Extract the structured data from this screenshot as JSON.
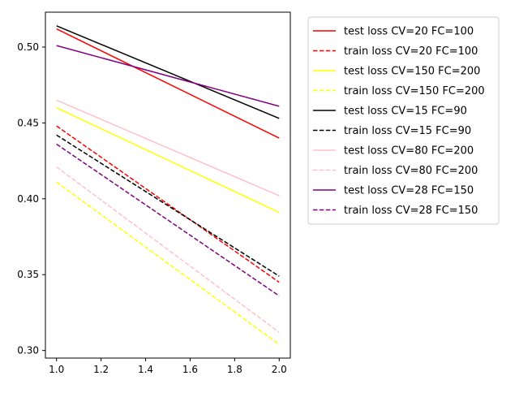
{
  "chart_data": {
    "type": "line",
    "title": "",
    "xlabel": "",
    "ylabel": "",
    "xlim": [
      0.95,
      2.05
    ],
    "ylim": [
      0.295,
      0.523
    ],
    "xticks": [
      1.0,
      1.2,
      1.4,
      1.6,
      1.8,
      2.0
    ],
    "xtick_labels": [
      "1.0",
      "1.2",
      "1.4",
      "1.6",
      "1.8",
      "2.0"
    ],
    "yticks": [
      0.3,
      0.35,
      0.4,
      0.45,
      0.5
    ],
    "ytick_labels": [
      "0.30",
      "0.35",
      "0.40",
      "0.45",
      "0.50"
    ],
    "grid": false,
    "legend_placement": "outside-upper-right",
    "x": [
      1.0,
      2.0
    ],
    "series": [
      {
        "name": "test loss CV=20 FC=100",
        "values": [
          0.512,
          0.44
        ],
        "color": "#ff0000",
        "style": "solid"
      },
      {
        "name": "train loss CV=20 FC=100",
        "values": [
          0.448,
          0.345
        ],
        "color": "#ff0000",
        "style": "dashed"
      },
      {
        "name": "test loss CV=150 FC=200",
        "values": [
          0.46,
          0.391
        ],
        "color": "#ffff00",
        "style": "solid"
      },
      {
        "name": "train loss CV=150 FC=200",
        "values": [
          0.411,
          0.304
        ],
        "color": "#ffff00",
        "style": "dashed"
      },
      {
        "name": "test loss CV=15 FC=90",
        "values": [
          0.514,
          0.453
        ],
        "color": "#000000",
        "style": "solid"
      },
      {
        "name": "train loss CV=15 FC=90",
        "values": [
          0.442,
          0.349
        ],
        "color": "#000000",
        "style": "dashed"
      },
      {
        "name": "test loss CV=80 FC=200",
        "values": [
          0.465,
          0.402
        ],
        "color": "#ffc0cb",
        "style": "solid"
      },
      {
        "name": "train loss CV=80 FC=200",
        "values": [
          0.421,
          0.312
        ],
        "color": "#ffc0cb",
        "style": "dashed"
      },
      {
        "name": "test loss CV=28 FC=150",
        "values": [
          0.501,
          0.461
        ],
        "color": "#800080",
        "style": "solid"
      },
      {
        "name": "train loss CV=28 FC=150",
        "values": [
          0.436,
          0.336
        ],
        "color": "#800080",
        "style": "dashed"
      }
    ]
  }
}
